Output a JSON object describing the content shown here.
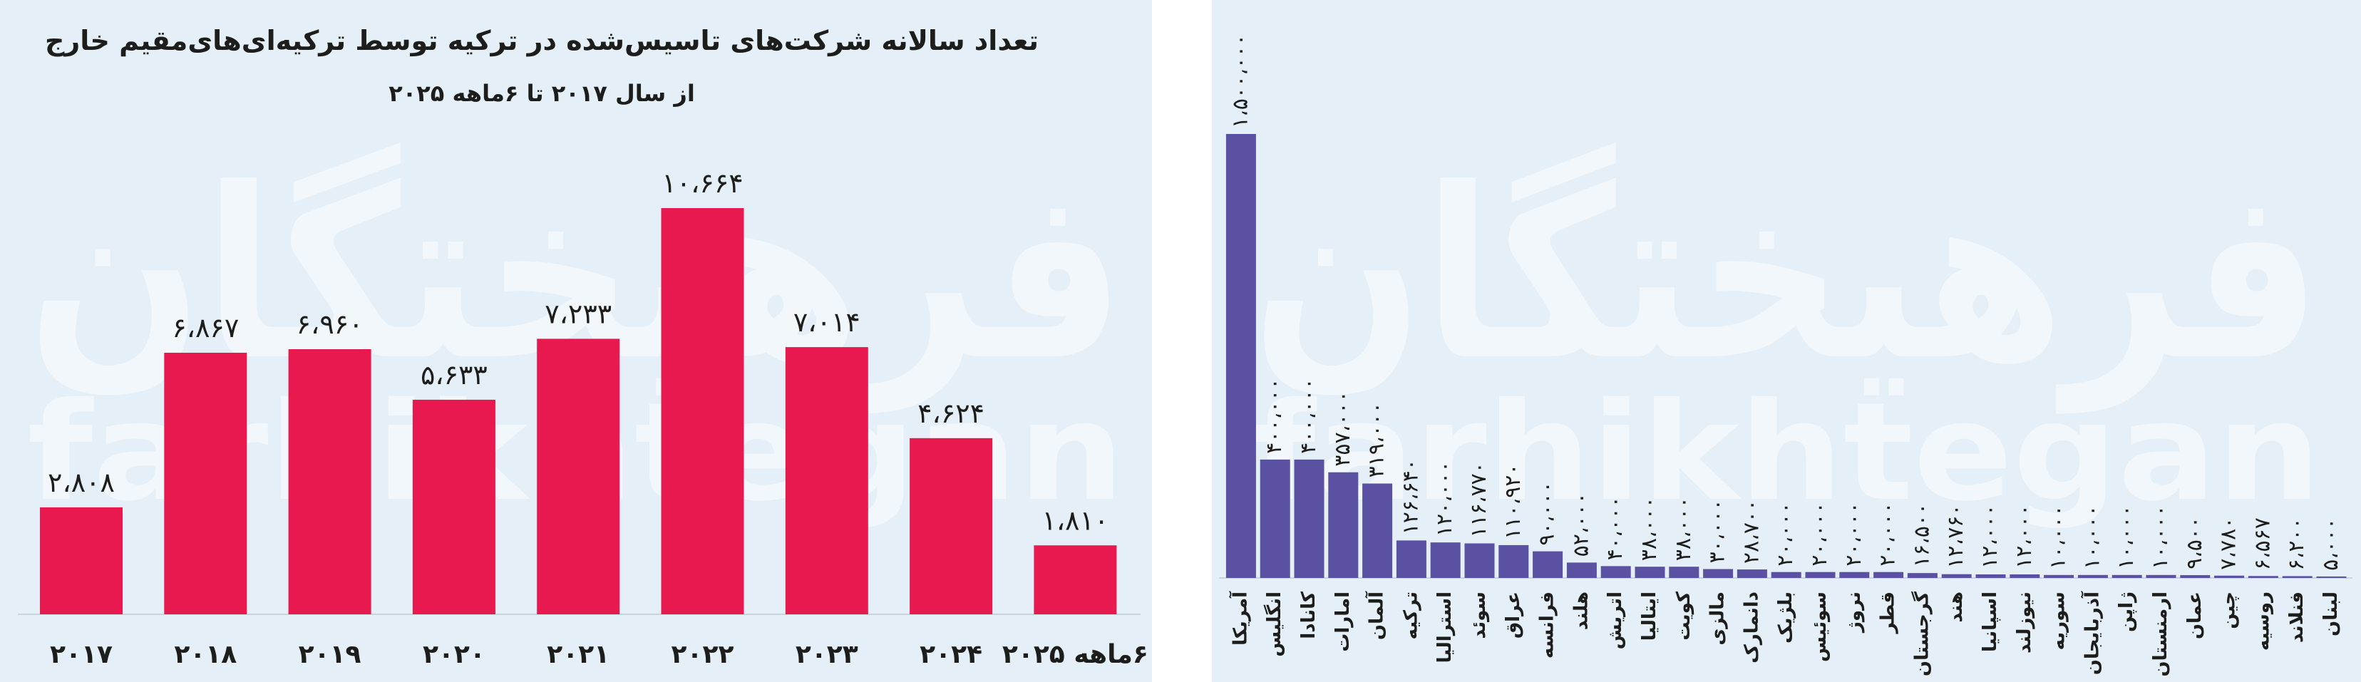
{
  "watermark": [
    "فرهیختگان",
    "farhikhtegan"
  ],
  "chart_data": [
    {
      "type": "bar",
      "title": "تعداد سالانه شرکت‌های تاسیس‌شده در ترکیه توسط ترکیه‌ای‌های‌مقیم خارج",
      "subtitle": "از سال ۲۰۱۷ تا ۶ماهه ۲۰۲۵",
      "categories": [
        "۲۰۱۷",
        "۲۰۱۸",
        "۲۰۱۹",
        "۲۰۲۰",
        "۲۰۲۱",
        "۲۰۲۲",
        "۲۰۲۳",
        "۲۰۲۴",
        "۶ماهه ۲۰۲۵"
      ],
      "values": [
        2808,
        6867,
        6960,
        5633,
        7233,
        10664,
        7014,
        4624,
        1810
      ],
      "value_labels": [
        "۲،۸۰۸",
        "۶،۸۶۷",
        "۶،۹۶۰",
        "۵،۶۳۳",
        "۷،۲۳۳",
        "۱۰،۶۶۴",
        "۷،۰۱۴",
        "۴،۶۲۴",
        "۱،۸۱۰"
      ],
      "color": "#e8194f"
    },
    {
      "type": "vbar",
      "categories": [
        "آمریکا",
        "انگلیس",
        "کانادا",
        "امارات",
        "آلمان",
        "ترکیه",
        "استرالیا",
        "سوئد",
        "عراق",
        "فرانسه",
        "هلند",
        "اتریش",
        "ایتالیا",
        "کویت",
        "مالزی",
        "دانمارک",
        "بلژیک",
        "سوئیس",
        "نروژ",
        "قطر",
        "گرجستان",
        "هند",
        "اسپانیا",
        "نیوزلند",
        "سوریه",
        "آذربایجان",
        "ژاپن",
        "ارمنستان",
        "عمان",
        "چین",
        "روسیه",
        "فنلاند",
        "لبنان"
      ],
      "values": [
        1500000,
        400000,
        400000,
        357000,
        319000,
        126640,
        120000,
        116770,
        110920,
        90000,
        52000,
        40000,
        38000,
        38000,
        30000,
        28700,
        20000,
        20000,
        20000,
        20000,
        16500,
        12760,
        12000,
        12000,
        10000,
        10000,
        10000,
        10000,
        9500,
        7780,
        6567,
        6200,
        5000
      ],
      "value_labels": [
        "۱،۵۰۰،۰۰۰",
        "۴۰۰،۰۰۰",
        "۴۰۰،۰۰۰",
        "۳۵۷،۰۰۰",
        "۳۱۹،۰۰۰",
        "۱۲۶،۶۴۰",
        "۱۲۰،۰۰۰",
        "۱۱۶،۷۷۰",
        "۱۱۰،۹۲۰",
        "۹۰،۰۰۰",
        "۵۲،۰۰۰",
        "۴۰،۰۰۰",
        "۳۸،۰۰۰",
        "۳۸،۰۰۰",
        "۳۰،۰۰۰",
        "۲۸،۷۰۰",
        "۲۰،۰۰۰",
        "۲۰،۰۰۰",
        "۲۰،۰۰۰",
        "۲۰،۰۰۰",
        "۱۶،۵۰۰",
        "۱۲،۷۶۰",
        "۱۲،۰۰۰",
        "۱۲،۰۰۰",
        "۱۰،۰۰۰",
        "۱۰،۰۰۰",
        "۱۰،۰۰۰",
        "۱۰،۰۰۰",
        "۹،۵۰۰",
        "۷،۷۸۰",
        "۶،۵۶۷",
        "۶،۲۰۰",
        "۵،۰۰۰"
      ],
      "color": "#5a51a3"
    }
  ]
}
